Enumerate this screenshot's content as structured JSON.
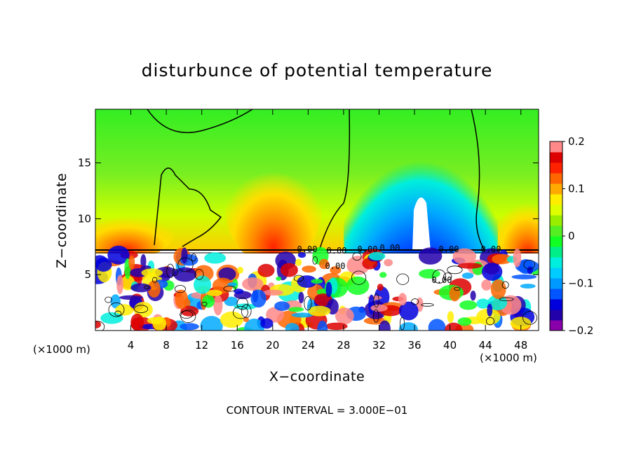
{
  "chart_data": {
    "type": "heatmap",
    "title": "disturbunce of potential temperature",
    "xlabel": "X−coordinate",
    "ylabel": "Z−coordinate",
    "x_unit": "(×1000 m)",
    "x_ticks": [
      4,
      8,
      12,
      16,
      20,
      24,
      28,
      32,
      36,
      40,
      44,
      48
    ],
    "x_tick_labels": [
      "4",
      "8",
      "12",
      "16",
      "20",
      "24",
      "28",
      "32",
      "36",
      "40",
      "44",
      "48"
    ],
    "y_ticks": [
      5,
      10,
      15
    ],
    "y_tick_labels": [
      "5",
      "10",
      "15"
    ],
    "xlim": [
      0,
      50
    ],
    "ylim": [
      0,
      19.8
    ],
    "colorbar": {
      "range": [
        -0.2,
        0.2
      ],
      "ticks": [
        0.2,
        0.1,
        0,
        -0.1,
        -0.2
      ],
      "tick_labels": [
        "0.2",
        "0.1",
        "0",
        "−0.1",
        "−0.2"
      ],
      "colors": [
        "#8800aa",
        "#2200aa",
        "#0000dd",
        "#0055ff",
        "#0099ff",
        "#00ccff",
        "#00eedd",
        "#00ee88",
        "#11ff22",
        "#55ee22",
        "#99ee00",
        "#ddff00",
        "#ffee00",
        "#ffaa00",
        "#ff6600",
        "#ff2200",
        "#dd0000",
        "#ff8888"
      ]
    },
    "contour_labels": [
      "0.00",
      "0.00",
      "0.00",
      "0.00",
      "0.00",
      "0.00",
      "0.00",
      "0.00"
    ],
    "annotation": "CONTOUR INTERVAL = 3.000E−01"
  },
  "footnote": "CONTOUR INTERVAL = 3.000E−01"
}
